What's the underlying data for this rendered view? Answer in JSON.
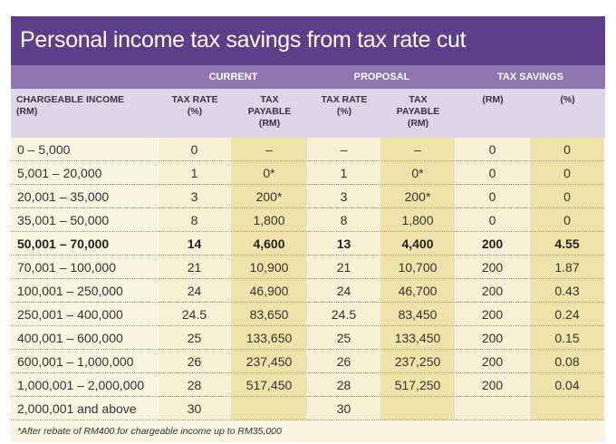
{
  "title": "Personal income tax savings from tax rate cut",
  "groups": [
    "CURRENT",
    "PROPOSAL",
    "TAX SAVINGS"
  ],
  "columns": [
    [
      "CHARGEABLE INCOME",
      "(RM)"
    ],
    [
      "TAX RATE",
      "(%)"
    ],
    [
      "TAX",
      "PAYABLE",
      "(RM)"
    ],
    [
      "TAX RATE",
      "(%)"
    ],
    [
      "TAX",
      "PAYABLE",
      "(RM)"
    ],
    [
      "(RM)"
    ],
    [
      "(%)"
    ]
  ],
  "rows": [
    [
      "0 – 5,000",
      "0",
      "–",
      "–",
      "–",
      "0",
      "0"
    ],
    [
      "5,001 – 20,000",
      "1",
      "0*",
      "1",
      "0*",
      "0",
      "0"
    ],
    [
      "20,001 – 35,000",
      "3",
      "200*",
      "3",
      "200*",
      "0",
      "0"
    ],
    [
      "35,001 – 50,000",
      "8",
      "1,800",
      "8",
      "1,800",
      "0",
      "0"
    ],
    [
      "50,001 – 70,000",
      "14",
      "4,600",
      "13",
      "4,400",
      "200",
      "4.55"
    ],
    [
      "70,001 – 100,000",
      "21",
      "10,900",
      "21",
      "10,700",
      "200",
      "1.87"
    ],
    [
      "100,001 – 250,000",
      "24",
      "46,900",
      "24",
      "46,700",
      "200",
      "0.43"
    ],
    [
      "250,001 – 400,000",
      "24.5",
      "83,650",
      "24.5",
      "83,450",
      "200",
      "0.24"
    ],
    [
      "400,001 – 600,000",
      "25",
      "133,650",
      "25",
      "133,450",
      "200",
      "0.15"
    ],
    [
      "600,001 – 1,000,000",
      "26",
      "237,450",
      "26",
      "237,250",
      "200",
      "0.08"
    ],
    [
      "1,000,001 – 2,000,000",
      "28",
      "517,450",
      "28",
      "517,250",
      "200",
      "0.04"
    ],
    [
      "2,000,001 and above",
      "30",
      null,
      "30",
      null,
      null,
      null
    ]
  ],
  "footnote": "*After rebate of RM400 for chargeable income up to RM35,000"
}
